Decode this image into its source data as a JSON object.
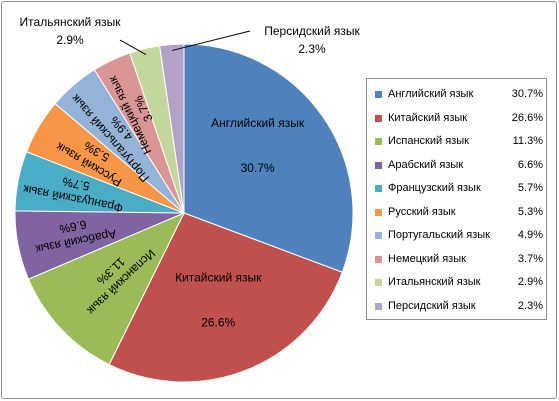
{
  "chart_data": {
    "type": "pie",
    "title": "",
    "legend_position": "right",
    "slices": [
      {
        "name": "Английский язык",
        "value": 30.7,
        "label": "30.7%",
        "color": "#4F81BD"
      },
      {
        "name": "Китайский язык",
        "value": 26.6,
        "label": "26.6%",
        "color": "#C0504D"
      },
      {
        "name": "Испанский язык",
        "value": 11.3,
        "label": "11.3%",
        "color": "#9BBB59"
      },
      {
        "name": "Арабский язык",
        "value": 6.6,
        "label": "6.6%",
        "color": "#8064A2"
      },
      {
        "name": "Французский язык",
        "value": 5.7,
        "label": "5.7%",
        "color": "#4BACC6"
      },
      {
        "name": "Русский язык",
        "value": 5.3,
        "label": "5.3%",
        "color": "#F79646"
      },
      {
        "name": "Португальский язык",
        "value": 4.9,
        "label": "4.9%",
        "color": "#95B3D7"
      },
      {
        "name": "Немецкий язык",
        "value": 3.7,
        "label": "3.7%",
        "color": "#D99694"
      },
      {
        "name": "Итальянский язык",
        "value": 2.9,
        "label": "2.9%",
        "color": "#C3D69B"
      },
      {
        "name": "Персидский язык",
        "value": 2.3,
        "label": "2.3%",
        "color": "#B2A2C7"
      }
    ]
  }
}
